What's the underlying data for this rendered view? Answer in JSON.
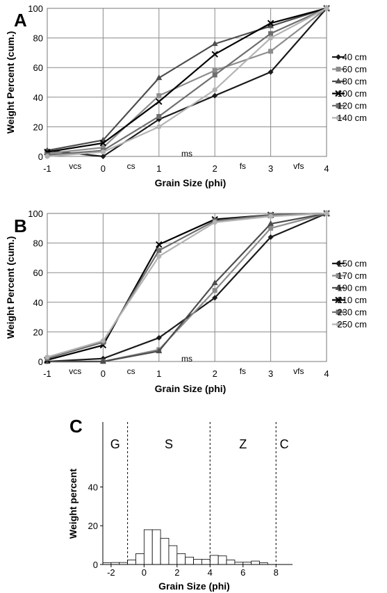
{
  "chart_data": [
    {
      "type": "line",
      "panel": "A",
      "xlabel": "Grain Size (phi)",
      "ylabel": "Weight Percent (cum.)",
      "xlim": [
        -1,
        4
      ],
      "ylim": [
        0,
        100
      ],
      "xticks": [
        -1,
        0,
        1,
        2,
        3,
        4
      ],
      "yticks": [
        0,
        20,
        40,
        60,
        80,
        100
      ],
      "grid": true,
      "legend": "right",
      "bands": [
        "vcs",
        "cs",
        "ms",
        "fs",
        "vfs"
      ],
      "x": [
        -1,
        0,
        1,
        2,
        3,
        4
      ],
      "series": [
        {
          "name": "40 cm",
          "values": [
            4,
            0,
            25,
            41,
            57,
            100
          ],
          "color": "#1a1a1a",
          "marker": "diamond"
        },
        {
          "name": "60 cm",
          "values": [
            2,
            6,
            41,
            58,
            71,
            100
          ],
          "color": "#8c8c8c",
          "marker": "square"
        },
        {
          "name": "80 cm",
          "values": [
            4,
            11,
            53,
            76,
            88,
            100
          ],
          "color": "#4d4d4d",
          "marker": "triangle"
        },
        {
          "name": "100 cm",
          "values": [
            3,
            9,
            37,
            69,
            90,
            100
          ],
          "color": "#000000",
          "marker": "x"
        },
        {
          "name": "120 cm",
          "values": [
            1,
            4,
            27,
            55,
            83,
            100
          ],
          "color": "#6e6e6e",
          "marker": "square"
        },
        {
          "name": "140 cm",
          "values": [
            0,
            3,
            20,
            45,
            80,
            100
          ],
          "color": "#b3b3b3",
          "marker": "circle"
        }
      ]
    },
    {
      "type": "line",
      "panel": "B",
      "xlabel": "Grain Size (phi)",
      "ylabel": "Weight Percent (cum.)",
      "xlim": [
        -1,
        4
      ],
      "ylim": [
        0,
        100
      ],
      "xticks": [
        -1,
        0,
        1,
        2,
        3,
        4
      ],
      "yticks": [
        0,
        20,
        40,
        60,
        80,
        100
      ],
      "grid": true,
      "legend": "right",
      "bands": [
        "vcs",
        "cs",
        "ms",
        "fs",
        "vfs"
      ],
      "x": [
        -1,
        0,
        1,
        2,
        3,
        4
      ],
      "series": [
        {
          "name": "150 cm",
          "values": [
            0,
            2,
            16,
            43,
            84,
            100
          ],
          "color": "#1a1a1a",
          "marker": "diamond"
        },
        {
          "name": "170 cm",
          "values": [
            0,
            0,
            8,
            48,
            90,
            100
          ],
          "color": "#8c8c8c",
          "marker": "square"
        },
        {
          "name": "190 cm",
          "values": [
            0,
            0,
            7,
            53,
            93,
            100
          ],
          "color": "#4d4d4d",
          "marker": "triangle"
        },
        {
          "name": "210 cm",
          "values": [
            1,
            11,
            79,
            96,
            99,
            100
          ],
          "color": "#000000",
          "marker": "x"
        },
        {
          "name": "230 cm",
          "values": [
            2,
            13,
            75,
            95,
            99,
            100
          ],
          "color": "#6e6e6e",
          "marker": "square"
        },
        {
          "name": "250 cm",
          "values": [
            3,
            14,
            71,
            94,
            98,
            100
          ],
          "color": "#b3b3b3",
          "marker": "circle"
        }
      ]
    },
    {
      "type": "bar",
      "panel": "C",
      "xlabel": "Grain Size (phi)",
      "ylabel": "Weight percent",
      "xlim": [
        -2.5,
        9
      ],
      "ylim": [
        0,
        25
      ],
      "xticks": [
        -2,
        0,
        2,
        4,
        6,
        8
      ],
      "yticks": [
        0,
        20,
        40
      ],
      "ytick_values": [
        0,
        6.8,
        13.6
      ],
      "grid": false,
      "bin_width": 0.5,
      "bin_starts": [
        -2.5,
        -2.0,
        -1.5,
        -1.0,
        -0.5,
        0.0,
        0.5,
        1.0,
        1.5,
        2.0,
        2.5,
        3.0,
        3.5,
        4.0,
        4.5,
        5.0,
        5.5,
        6.0,
        6.5,
        7.0
      ],
      "values": [
        0.3,
        0.35,
        0.35,
        0.8,
        1.9,
        6.1,
        6.1,
        4.6,
        3.3,
        1.9,
        1.3,
        0.9,
        0.9,
        1.6,
        1.5,
        0.8,
        0.4,
        0.4,
        0.6,
        0.3
      ],
      "dividers": [
        -1,
        4,
        8
      ],
      "zones": [
        {
          "label": "G",
          "x": -1.75
        },
        {
          "label": "S",
          "x": 1.5
        },
        {
          "label": "Z",
          "x": 6
        },
        {
          "label": "C",
          "x": 8.5
        }
      ]
    }
  ]
}
